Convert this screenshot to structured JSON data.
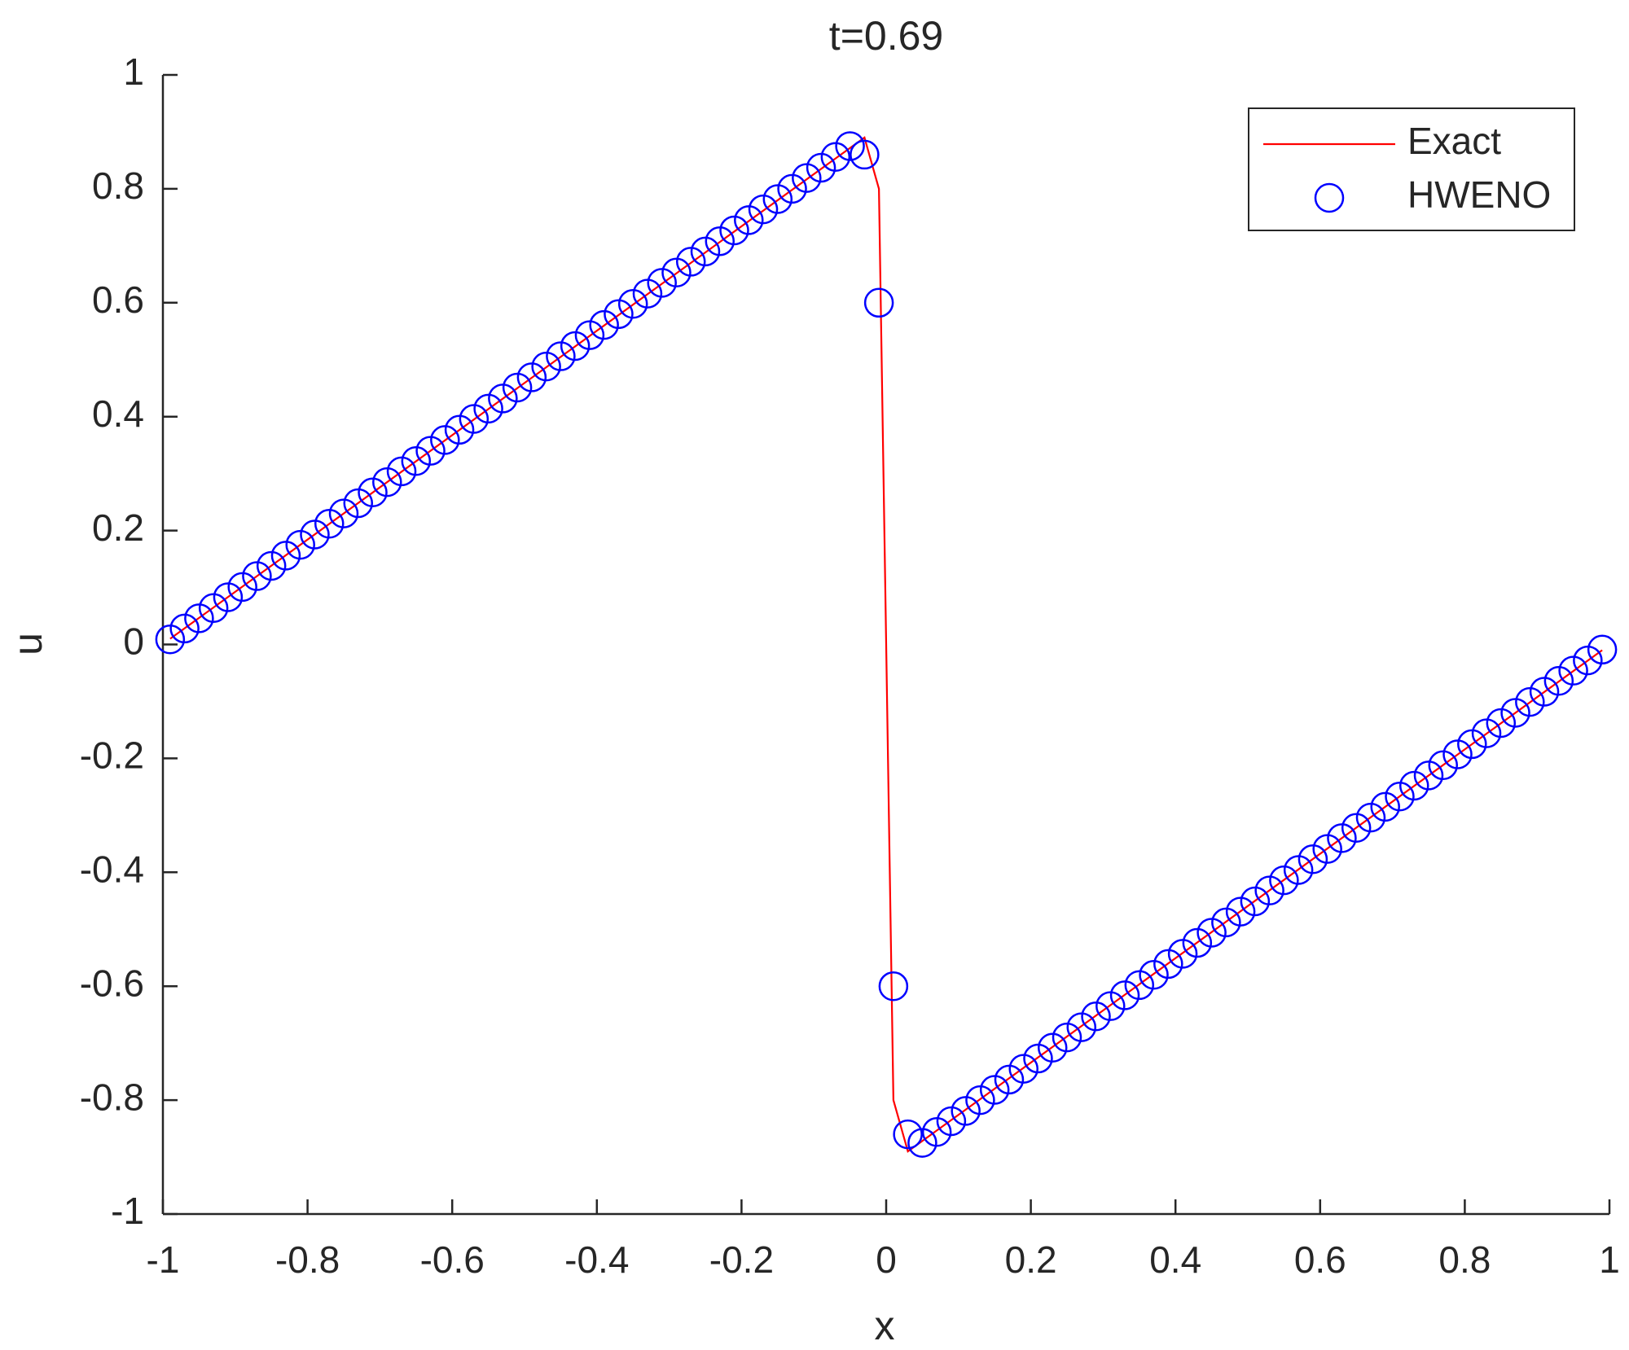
{
  "chart_data": {
    "type": "line",
    "title": "t=0.69",
    "x_label": "x",
    "y_label": "u",
    "xlim": [
      -1,
      1
    ],
    "ylim": [
      -1,
      1
    ],
    "xticks": [
      -1,
      -0.8,
      -0.6,
      -0.4,
      -0.2,
      0,
      0.2,
      0.4,
      0.6,
      0.8,
      1
    ],
    "yticks": [
      -1,
      -0.8,
      -0.6,
      -0.4,
      -0.2,
      0,
      0.2,
      0.4,
      0.6,
      0.8,
      1
    ],
    "legend": "upper right",
    "series": [
      {
        "name": "Exact",
        "color": "#ff0000",
        "marker": "line",
        "x": [
          -0.99,
          -0.03,
          -0.01,
          0.01,
          0.03,
          0.99
        ],
        "values": [
          0.01,
          0.89,
          0.8,
          -0.8,
          -0.89,
          -0.01
        ]
      },
      {
        "name": "HWENO",
        "color": "#0000ff",
        "marker": "circle",
        "x": [
          -0.99,
          -0.97,
          -0.95,
          -0.93,
          -0.91,
          -0.89,
          -0.87,
          -0.85,
          -0.83,
          -0.81,
          -0.79,
          -0.77,
          -0.75,
          -0.73,
          -0.71,
          -0.69,
          -0.67,
          -0.65,
          -0.63,
          -0.61,
          -0.59,
          -0.57,
          -0.55,
          -0.53,
          -0.51,
          -0.49,
          -0.47,
          -0.45,
          -0.43,
          -0.41,
          -0.39,
          -0.37,
          -0.35,
          -0.33,
          -0.31,
          -0.29,
          -0.27,
          -0.25,
          -0.23,
          -0.21,
          -0.19,
          -0.17,
          -0.15,
          -0.13,
          -0.11,
          -0.09,
          -0.07,
          -0.05,
          -0.03,
          -0.01,
          0.01,
          0.03,
          0.05,
          0.07,
          0.09,
          0.11,
          0.13,
          0.15,
          0.17,
          0.19,
          0.21,
          0.23,
          0.25,
          0.27,
          0.29,
          0.31,
          0.33,
          0.35,
          0.37,
          0.39,
          0.41,
          0.43,
          0.45,
          0.47,
          0.49,
          0.51,
          0.53,
          0.55,
          0.57,
          0.59,
          0.61,
          0.63,
          0.65,
          0.67,
          0.69,
          0.71,
          0.73,
          0.75,
          0.77,
          0.79,
          0.81,
          0.83,
          0.85,
          0.87,
          0.89,
          0.91,
          0.93,
          0.95,
          0.97,
          0.99
        ],
        "values": [
          0.009,
          0.028,
          0.046,
          0.064,
          0.083,
          0.101,
          0.12,
          0.138,
          0.156,
          0.175,
          0.193,
          0.212,
          0.23,
          0.248,
          0.267,
          0.285,
          0.304,
          0.322,
          0.34,
          0.359,
          0.377,
          0.396,
          0.414,
          0.432,
          0.451,
          0.469,
          0.488,
          0.506,
          0.524,
          0.543,
          0.561,
          0.58,
          0.598,
          0.616,
          0.635,
          0.653,
          0.672,
          0.69,
          0.708,
          0.727,
          0.745,
          0.764,
          0.782,
          0.8,
          0.819,
          0.837,
          0.856,
          0.875,
          0.86,
          0.6,
          -0.6,
          -0.86,
          -0.875,
          -0.856,
          -0.837,
          -0.819,
          -0.8,
          -0.782,
          -0.764,
          -0.745,
          -0.727,
          -0.708,
          -0.69,
          -0.672,
          -0.653,
          -0.635,
          -0.616,
          -0.598,
          -0.58,
          -0.561,
          -0.543,
          -0.524,
          -0.506,
          -0.488,
          -0.469,
          -0.451,
          -0.432,
          -0.414,
          -0.396,
          -0.377,
          -0.359,
          -0.34,
          -0.322,
          -0.304,
          -0.285,
          -0.267,
          -0.248,
          -0.23,
          -0.212,
          -0.193,
          -0.175,
          -0.156,
          -0.138,
          -0.12,
          -0.101,
          -0.083,
          -0.064,
          -0.046,
          -0.028,
          -0.009
        ]
      }
    ]
  }
}
